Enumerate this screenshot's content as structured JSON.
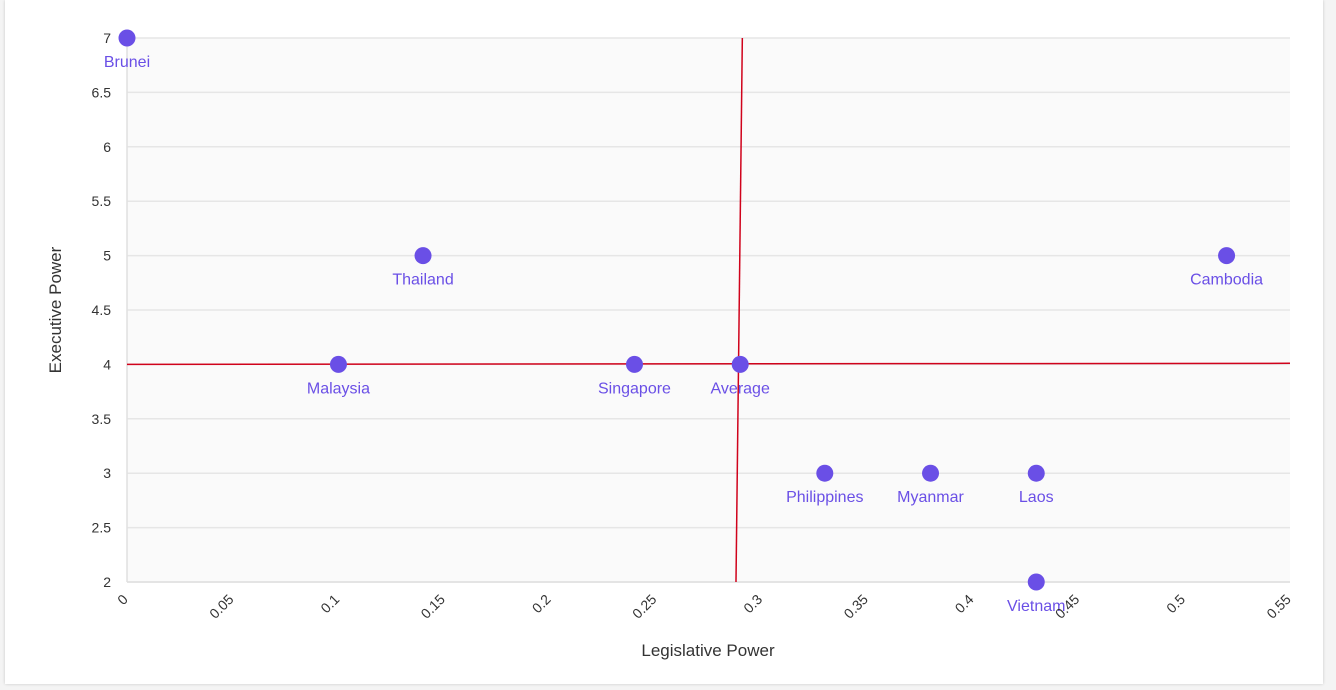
{
  "chart_data": {
    "type": "scatter",
    "title": "",
    "xlabel": "Legislative Power",
    "ylabel": "Executive Power",
    "xlim": [
      0,
      0.55
    ],
    "ylim": [
      2,
      7
    ],
    "xticks": [
      "0",
      "0.05",
      "0.1",
      "0.15",
      "0.2",
      "0.25",
      "0.3",
      "0.35",
      "0.4",
      "0.45",
      "0.5",
      "0.55"
    ],
    "xtick_values": [
      0,
      0.05,
      0.1,
      0.15,
      0.2,
      0.25,
      0.3,
      0.35,
      0.4,
      0.45,
      0.5,
      0.55
    ],
    "yticks": [
      "2",
      "2.5",
      "3",
      "3.5",
      "4",
      "4.5",
      "5",
      "5.5",
      "6",
      "6.5",
      "7"
    ],
    "ytick_values": [
      2,
      2.5,
      3,
      3.5,
      4,
      4.5,
      5,
      5.5,
      6,
      6.5,
      7
    ],
    "grid": true,
    "point_color": "#6a4fe6",
    "label_color": "#6a4fe6",
    "reference_line_color": "#d0021b",
    "points": [
      {
        "label": "Brunei",
        "x": 0,
        "y": 7
      },
      {
        "label": "Thailand",
        "x": 0.14,
        "y": 5
      },
      {
        "label": "Cambodia",
        "x": 0.52,
        "y": 5
      },
      {
        "label": "Malaysia",
        "x": 0.1,
        "y": 4
      },
      {
        "label": "Singapore",
        "x": 0.24,
        "y": 4
      },
      {
        "label": "Average",
        "x": 0.29,
        "y": 4
      },
      {
        "label": "Philippines",
        "x": 0.33,
        "y": 3
      },
      {
        "label": "Myanmar",
        "x": 0.38,
        "y": 3
      },
      {
        "label": "Laos",
        "x": 0.43,
        "y": 3
      },
      {
        "label": "Vietnam",
        "x": 0.43,
        "y": 2
      }
    ],
    "reference_lines": [
      {
        "orientation": "vertical",
        "from": {
          "x": 0.291,
          "y": 7
        },
        "to": {
          "x": 0.288,
          "y": 2
        }
      },
      {
        "orientation": "horizontal",
        "from": {
          "x": 0,
          "y": 4
        },
        "to": {
          "x": 0.55,
          "y": 4.01
        }
      }
    ]
  }
}
